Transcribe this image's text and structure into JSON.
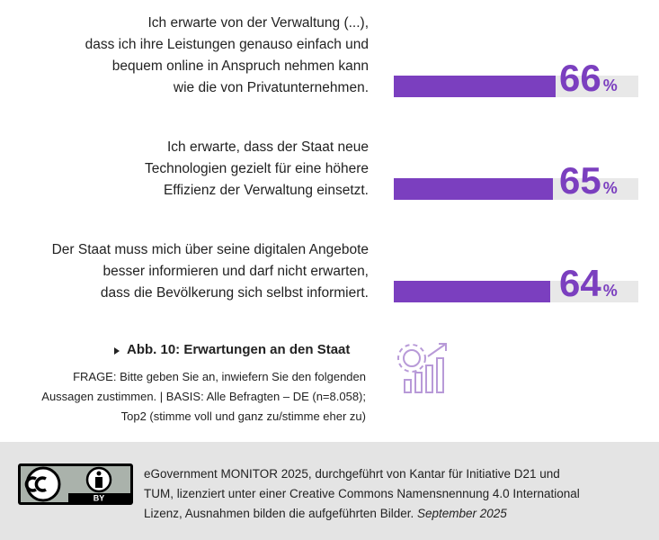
{
  "chart_data": {
    "type": "bar",
    "orientation": "horizontal",
    "categories": [
      "Ich erwarte von der Verwaltung (...),\ndass ich ihre Leistungen genauso einfach und\nbequem online in Anspruch nehmen kann\nwie die von Privatunternehmen.",
      "Ich erwarte, dass der Staat neue\nTechnologien gezielt für eine höhere\nEffizienz der Verwaltung einsetzt.",
      "Der Staat muss mich über seine digitalen Angebote\nbesser informieren und darf nicht erwarten,\ndass die Bevölkerung sich selbst informiert."
    ],
    "values": [
      66,
      65,
      64
    ],
    "value_labels": [
      "66%",
      "65%",
      "64%"
    ],
    "color": "#7b3fbf",
    "xlim": [
      0,
      100
    ]
  },
  "caption": "Abb. 10: Erwartungen an den Staat",
  "note": "FRAGE: Bitte geben Sie an, inwiefern Sie den folgenden\nAussagen zustimmen. | BASIS: Alle Befragten – DE (n=8.058);\nTop2 (stimme voll und ganz zu/stimme eher zu)",
  "license": {
    "badge": "BY",
    "text": "eGovernment MONITOR 2025, durchgeführt von Kantar für Initiative D21 und\nTUM, lizenziert unter einer Creative Commons Namensnennung 4.0 International\nLizenz, Ausnahmen bilden die aufgeführten Bilder.",
    "date": "September 2025"
  }
}
